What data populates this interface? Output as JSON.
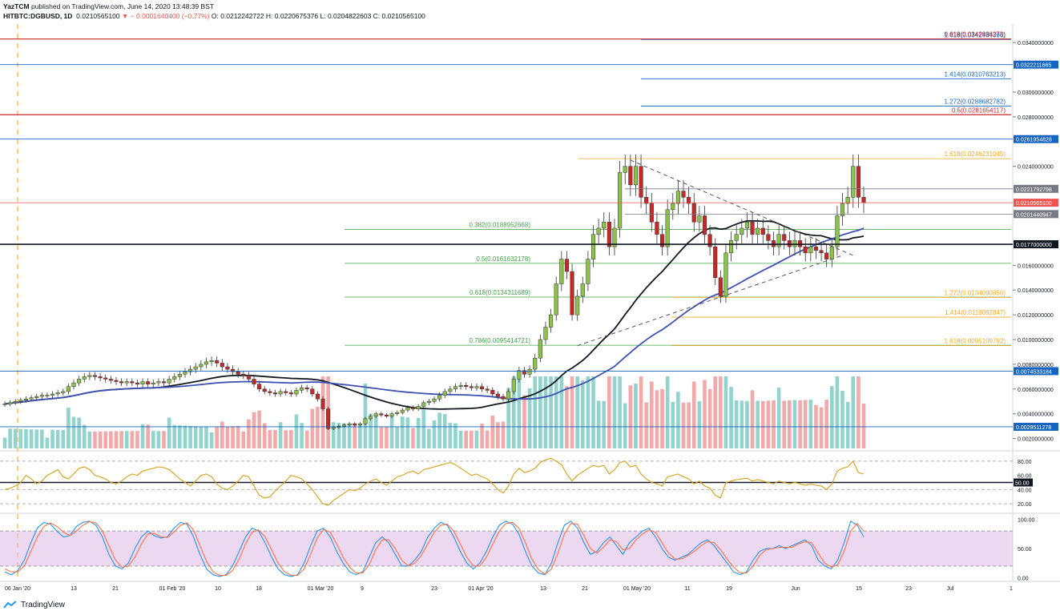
{
  "header": {
    "line1_author": "YazTCM",
    "line1_rest": "published on TradingView.com, June 14, 2020 13:48:39 BST",
    "symbol": "HITBTC:DGBUSD, 1D",
    "last_price": "0.0210565100",
    "change": "− 0.0001640400 (−0.77%)",
    "ohlc": "O: 0.0212242722 H: 0.0220675376 L: 0.0204822603 C: 0.0210565100"
  },
  "footer": {
    "brand": "TradingView"
  },
  "colors": {
    "up": "#26a69a",
    "down": "#ef5350",
    "candle_up_body": "#8bc34a",
    "candle_down_body": "#c62828",
    "ma_black": "#131722",
    "ma_blue": "#3f51b5",
    "rsi_line": "#d4a017",
    "stoch_k": "#2196f3",
    "stoch_d": "#ff7043",
    "stoch_band": "#e1bee7",
    "fib_red": "#c62828",
    "fib_blue": "#1565c0",
    "fib_green": "#43a047",
    "fib_orange": "#f9a825"
  },
  "chart_data": [
    {
      "type": "candlestick",
      "title": "HITBTC:DGBUSD, 1D",
      "x_tick_labels": [
        "06 Jan '20",
        "13",
        "21",
        "01 Feb '20",
        "10",
        "18",
        "01 Mar '20",
        "9",
        "23",
        "01 Apr '20",
        "13",
        "21",
        "01 May '20",
        "11",
        "19",
        "Jun",
        "15",
        "23",
        "Jul",
        "1"
      ],
      "y_tick_labels": [
        "0.0340000000",
        "0.0300000000",
        "0.0280000000",
        "0.0240000000",
        "0.0160000000",
        "0.0140000000",
        "0.0120000000",
        "0.0100000000",
        "0.0080000000",
        "0.0060000000",
        "0.0040000000",
        "0.0020000000"
      ],
      "ylim": [
        0.0012,
        0.0355
      ],
      "closes": [
        0.0048,
        0.0049,
        0.005,
        0.0051,
        0.0052,
        0.0053,
        0.0054,
        0.0055,
        0.0055,
        0.0056,
        0.0057,
        0.0058,
        0.0062,
        0.0065,
        0.0068,
        0.007,
        0.0071,
        0.007,
        0.0069,
        0.0068,
        0.0067,
        0.0066,
        0.0065,
        0.0066,
        0.0065,
        0.0064,
        0.0066,
        0.0064,
        0.0065,
        0.0066,
        0.0065,
        0.0068,
        0.007,
        0.0072,
        0.0074,
        0.0076,
        0.0078,
        0.008,
        0.0082,
        0.0083,
        0.0081,
        0.0078,
        0.0076,
        0.0074,
        0.0072,
        0.0071,
        0.0068,
        0.0064,
        0.006,
        0.0058,
        0.0057,
        0.0056,
        0.0058,
        0.0057,
        0.0056,
        0.0059,
        0.0061,
        0.006,
        0.0056,
        0.0052,
        0.0044,
        0.0028,
        0.0029,
        0.003,
        0.0031,
        0.0032,
        0.0031,
        0.0032,
        0.0036,
        0.0038,
        0.004,
        0.0039,
        0.0038,
        0.004,
        0.0041,
        0.0043,
        0.0045,
        0.0044,
        0.0046,
        0.0049,
        0.005,
        0.0052,
        0.0055,
        0.0058,
        0.006,
        0.0062,
        0.0063,
        0.0062,
        0.0061,
        0.0062,
        0.006,
        0.0059,
        0.0056,
        0.0054,
        0.0052,
        0.0058,
        0.0068,
        0.0075,
        0.0072,
        0.0076,
        0.0085,
        0.01,
        0.011,
        0.012,
        0.0145,
        0.0165,
        0.0155,
        0.012,
        0.0135,
        0.0145,
        0.0165,
        0.0185,
        0.019,
        0.0195,
        0.0175,
        0.019,
        0.0235,
        0.024,
        0.0225,
        0.024,
        0.0215,
        0.021,
        0.0195,
        0.0185,
        0.0175,
        0.0205,
        0.021,
        0.022,
        0.0215,
        0.021,
        0.0195,
        0.02,
        0.0185,
        0.0175,
        0.015,
        0.0135,
        0.017,
        0.018,
        0.0185,
        0.019,
        0.0195,
        0.0185,
        0.019,
        0.0185,
        0.018,
        0.0175,
        0.0185,
        0.018,
        0.0175,
        0.018,
        0.0175,
        0.017,
        0.0175,
        0.0172,
        0.017,
        0.0165,
        0.0175,
        0.02,
        0.021,
        0.0215,
        0.024,
        0.0215,
        0.02106
      ],
      "series": [
        {
          "name": "",
          "line": "MA (black)",
          "values_start": 0.0057,
          "values_end": 0.0143
        },
        {
          "name": "",
          "line": "MA (blue)",
          "values_start": 0.0083,
          "values_end": 0.0117
        }
      ],
      "horizontal_levels": [
        {
          "label": "1.618(0.0342484396)",
          "value": 0.03425,
          "color_key": "fib_blue"
        },
        {
          "label": "0.618(0.0342936273)",
          "value": 0.03429,
          "color_key": "fib_red"
        },
        {
          "label": "1.414(0.0310763213)",
          "value": 0.03108,
          "color_key": "fib_blue"
        },
        {
          "label": "1.272(0.0288682782)",
          "value": 0.02887,
          "color_key": "fib_blue"
        },
        {
          "label": "0.5(0.0281654117)",
          "value": 0.02817,
          "color_key": "fib_red"
        },
        {
          "label": "1.618(0.0246231045)",
          "value": 0.02462,
          "color_key": "fib_orange"
        },
        {
          "label": "0.382(0.0188952668)",
          "value": 0.0189,
          "color_key": "fib_green"
        },
        {
          "label": "0.5(0.0161632178)",
          "value": 0.01616,
          "color_key": "fib_green"
        },
        {
          "label": "0.618(0.0134311689)",
          "value": 0.01343,
          "color_key": "fib_green"
        },
        {
          "label": "1.272(0.0134090856)",
          "value": 0.01341,
          "color_key": "fib_orange"
        },
        {
          "label": "1.414(0.0118092847)",
          "value": 0.01181,
          "color_key": "fib_orange"
        },
        {
          "label": "0.786(0.0095414721)",
          "value": 0.00954,
          "color_key": "fib_green"
        },
        {
          "label": "1.618(0.0095109792)",
          "value": 0.00951,
          "color_key": "fib_orange"
        }
      ],
      "price_badges": [
        {
          "label": "0.0322211665",
          "value": 0.03222,
          "color": "#1565c0"
        },
        {
          "label": "0.0261954828",
          "value": 0.0262,
          "color": "#1565c0"
        },
        {
          "label": "0.0221792798",
          "value": 0.02218,
          "color": "#787b86"
        },
        {
          "label": "0.0210565100",
          "value": 0.02106,
          "color": "#ef5350"
        },
        {
          "label": "0.0201440947",
          "value": 0.02014,
          "color": "#787b86"
        },
        {
          "label": "0.0177000000",
          "value": 0.0177,
          "color": "#131722"
        },
        {
          "label": "0.0074533184",
          "value": 0.00745,
          "color": "#1565c0"
        },
        {
          "label": "0.0029511278",
          "value": 0.00295,
          "color": "#1565c0"
        }
      ]
    },
    {
      "type": "line",
      "title": "",
      "y_tick_labels": [
        "80.00",
        "60.00",
        "50.00",
        "40.00",
        "20.00"
      ],
      "ylim": [
        10,
        90
      ],
      "values": [
        40,
        42,
        45,
        50,
        60,
        55,
        48,
        52,
        60,
        64,
        68,
        58,
        55,
        62,
        70,
        72,
        68,
        60,
        58,
        55,
        50,
        48,
        52,
        58,
        62,
        60,
        66,
        68,
        70,
        72,
        71,
        68,
        62,
        55,
        50,
        45,
        52,
        60,
        62,
        58,
        48,
        42,
        40,
        45,
        52,
        60,
        58,
        45,
        32,
        28,
        30,
        38,
        45,
        52,
        60,
        58,
        55,
        48,
        40,
        30,
        20,
        18,
        25,
        30,
        35,
        40,
        38,
        42,
        48,
        52,
        55,
        50,
        46,
        52,
        58,
        60,
        64,
        66,
        62,
        68,
        70,
        72,
        74,
        76,
        78,
        75,
        70,
        65,
        60,
        62,
        58,
        55,
        48,
        40,
        35,
        45,
        62,
        70,
        64,
        66,
        70,
        78,
        82,
        84,
        80,
        75,
        62,
        52,
        60,
        65,
        70,
        74,
        72,
        74,
        62,
        68,
        78,
        80,
        72,
        74,
        62,
        55,
        50,
        48,
        45,
        58,
        60,
        62,
        58,
        55,
        48,
        52,
        45,
        42,
        32,
        28,
        50,
        52,
        54,
        55,
        56,
        52,
        54,
        52,
        50,
        48,
        52,
        50,
        48,
        50,
        48,
        46,
        48,
        46,
        45,
        40,
        48,
        66,
        70,
        72,
        80,
        64,
        62
      ]
    },
    {
      "type": "line",
      "title": "",
      "y_tick_labels": [
        "100.00",
        "50.00",
        "0.00"
      ],
      "ylim": [
        -5,
        105
      ],
      "series": [
        {
          "name": "",
          "values": [
            10,
            5,
            12,
            30,
            60,
            85,
            95,
            92,
            80,
            70,
            72,
            88,
            95,
            97,
            90,
            70,
            40,
            20,
            15,
            25,
            50,
            70,
            80,
            72,
            68,
            70,
            85,
            95,
            92,
            70,
            40,
            15,
            5,
            2,
            5,
            20,
            45,
            70,
            85,
            80,
            60,
            35,
            15,
            5,
            2,
            5,
            25,
            55,
            80,
            85,
            70,
            45,
            25,
            10,
            5,
            10,
            35,
            60,
            70,
            60,
            40,
            20,
            20,
            30,
            45,
            70,
            85,
            95,
            90,
            70,
            45,
            25,
            15,
            25,
            45,
            70,
            90,
            97,
            92,
            75,
            45,
            20,
            8,
            5,
            25,
            60,
            90,
            97,
            85,
            60,
            40,
            45,
            60,
            70,
            55,
            40,
            60,
            70,
            80,
            85,
            70,
            50,
            35,
            30,
            35,
            40,
            50,
            60,
            65,
            55,
            40,
            25,
            10,
            5,
            10,
            30,
            45,
            50,
            50,
            55,
            50,
            55,
            60,
            65,
            55,
            30,
            20,
            15,
            30,
            60,
            97,
            90,
            70
          ]
        },
        {
          "name": "",
          "values": [
            15,
            10,
            10,
            20,
            45,
            70,
            88,
            94,
            88,
            78,
            72,
            80,
            90,
            96,
            94,
            80,
            55,
            30,
            18,
            20,
            35,
            58,
            75,
            76,
            70,
            69,
            78,
            90,
            94,
            82,
            55,
            28,
            10,
            4,
            4,
            12,
            32,
            58,
            78,
            82,
            70,
            48,
            25,
            10,
            4,
            4,
            15,
            40,
            68,
            83,
            78,
            58,
            35,
            18,
            8,
            8,
            22,
            48,
            65,
            65,
            50,
            30,
            20,
            25,
            38,
            58,
            78,
            90,
            92,
            80,
            58,
            35,
            20,
            20,
            35,
            58,
            80,
            93,
            95,
            85,
            60,
            32,
            14,
            6,
            15,
            42,
            75,
            93,
            92,
            72,
            50,
            42,
            52,
            65,
            62,
            48,
            50,
            65,
            75,
            82,
            78,
            60,
            42,
            32,
            32,
            38,
            45,
            55,
            62,
            60,
            48,
            32,
            18,
            8,
            8,
            20,
            38,
            48,
            50,
            52,
            52,
            52,
            58,
            62,
            60,
            42,
            25,
            18,
            22,
            45,
            80,
            93,
            80
          ]
        }
      ]
    }
  ]
}
